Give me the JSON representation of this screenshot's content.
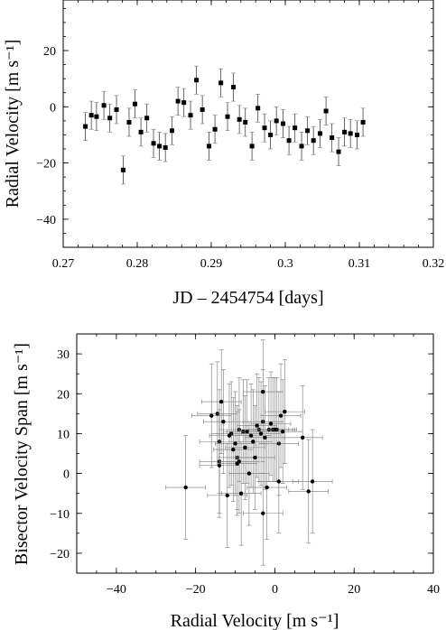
{
  "chart_data": [
    {
      "type": "scatter",
      "title": "",
      "xlabel": "JD – 2454754 [days]",
      "ylabel": "Radial Velocity [m s⁻¹]",
      "xlim": [
        0.27,
        0.32
      ],
      "ylim": [
        -50,
        38
      ],
      "xticks": [
        0.27,
        0.28,
        0.29,
        0.3,
        0.31,
        0.32
      ],
      "xtick_labels": [
        "0.27",
        "0.28",
        "0.29",
        "0.3",
        "0.31",
        "0.32"
      ],
      "yticks": [
        -40,
        -20,
        0,
        20
      ],
      "ytick_labels": [
        "−40",
        "−20",
        "0",
        "20"
      ],
      "marker": "square",
      "points": [
        {
          "x": 0.273,
          "y": -7,
          "yerr": 5
        },
        {
          "x": 0.2738,
          "y": -3,
          "yerr": 5
        },
        {
          "x": 0.2745,
          "y": -3.5,
          "yerr": 5
        },
        {
          "x": 0.2755,
          "y": 0.5,
          "yerr": 5
        },
        {
          "x": 0.2763,
          "y": -4,
          "yerr": 5
        },
        {
          "x": 0.2772,
          "y": -1,
          "yerr": 5
        },
        {
          "x": 0.2781,
          "y": -22.5,
          "yerr": 5
        },
        {
          "x": 0.2789,
          "y": -5.5,
          "yerr": 5
        },
        {
          "x": 0.2797,
          "y": 1,
          "yerr": 5
        },
        {
          "x": 0.2805,
          "y": -9,
          "yerr": 5
        },
        {
          "x": 0.2813,
          "y": -4,
          "yerr": 5
        },
        {
          "x": 0.2822,
          "y": -13,
          "yerr": 5
        },
        {
          "x": 0.283,
          "y": -14,
          "yerr": 5
        },
        {
          "x": 0.2838,
          "y": -14.5,
          "yerr": 5
        },
        {
          "x": 0.2847,
          "y": -8.5,
          "yerr": 5
        },
        {
          "x": 0.2855,
          "y": 2,
          "yerr": 5
        },
        {
          "x": 0.2863,
          "y": 1.5,
          "yerr": 5
        },
        {
          "x": 0.2872,
          "y": -3,
          "yerr": 5
        },
        {
          "x": 0.288,
          "y": 9.5,
          "yerr": 5
        },
        {
          "x": 0.2888,
          "y": -1,
          "yerr": 5
        },
        {
          "x": 0.2897,
          "y": -14,
          "yerr": 5
        },
        {
          "x": 0.2905,
          "y": -8,
          "yerr": 5
        },
        {
          "x": 0.2913,
          "y": 8.5,
          "yerr": 5
        },
        {
          "x": 0.2922,
          "y": -3.5,
          "yerr": 5
        },
        {
          "x": 0.293,
          "y": 7,
          "yerr": 5
        },
        {
          "x": 0.2938,
          "y": -4.5,
          "yerr": 5
        },
        {
          "x": 0.2946,
          "y": -5.5,
          "yerr": 5
        },
        {
          "x": 0.2955,
          "y": -14,
          "yerr": 5
        },
        {
          "x": 0.2963,
          "y": -0.5,
          "yerr": 5
        },
        {
          "x": 0.2972,
          "y": -7.5,
          "yerr": 5
        },
        {
          "x": 0.298,
          "y": -10,
          "yerr": 5
        },
        {
          "x": 0.2988,
          "y": -5,
          "yerr": 5
        },
        {
          "x": 0.2997,
          "y": -6,
          "yerr": 5
        },
        {
          "x": 0.3005,
          "y": -12,
          "yerr": 5
        },
        {
          "x": 0.3013,
          "y": -7.5,
          "yerr": 5
        },
        {
          "x": 0.3022,
          "y": -14,
          "yerr": 5
        },
        {
          "x": 0.303,
          "y": -8.5,
          "yerr": 5
        },
        {
          "x": 0.3038,
          "y": -12,
          "yerr": 5
        },
        {
          "x": 0.3047,
          "y": -9.5,
          "yerr": 5
        },
        {
          "x": 0.3055,
          "y": -1.5,
          "yerr": 5
        },
        {
          "x": 0.3063,
          "y": -11,
          "yerr": 5
        },
        {
          "x": 0.3072,
          "y": -16,
          "yerr": 5
        },
        {
          "x": 0.308,
          "y": -9,
          "yerr": 5
        },
        {
          "x": 0.3088,
          "y": -9.5,
          "yerr": 5
        },
        {
          "x": 0.3097,
          "y": -10,
          "yerr": 5
        },
        {
          "x": 0.3105,
          "y": -5.5,
          "yerr": 5
        }
      ],
      "grid": false
    },
    {
      "type": "scatter",
      "title": "",
      "xlabel": "Radial Velocity [m s⁻¹]",
      "ylabel": "Bisector Velocity Span [m s⁻¹]",
      "xlim": [
        -50,
        40
      ],
      "ylim": [
        -25,
        35
      ],
      "xticks": [
        -40,
        -20,
        0,
        20,
        40
      ],
      "xtick_labels": [
        "−40",
        "−20",
        "0",
        "20",
        "40"
      ],
      "yticks": [
        -20,
        -10,
        0,
        10,
        20,
        30
      ],
      "ytick_labels": [
        "−20",
        "−10",
        "0",
        "10",
        "20",
        "30"
      ],
      "marker": "circle",
      "points": [
        {
          "x": -22.5,
          "y": -3.5,
          "xerr": 5,
          "yerr": 13
        },
        {
          "x": -16,
          "y": 14.5,
          "xerr": 5,
          "yerr": 13
        },
        {
          "x": -14.5,
          "y": 15,
          "xerr": 5,
          "yerr": 13
        },
        {
          "x": -14,
          "y": 8,
          "xerr": 5,
          "yerr": 13
        },
        {
          "x": -14,
          "y": 3,
          "xerr": 5,
          "yerr": 13
        },
        {
          "x": -14,
          "y": 2,
          "xerr": 5,
          "yerr": 13
        },
        {
          "x": -13.5,
          "y": 18,
          "xerr": 5,
          "yerr": 13
        },
        {
          "x": -13,
          "y": 13,
          "xerr": 5,
          "yerr": 13
        },
        {
          "x": -12,
          "y": -5.5,
          "xerr": 5,
          "yerr": 13
        },
        {
          "x": -11.5,
          "y": 9.5,
          "xerr": 5,
          "yerr": 13
        },
        {
          "x": -11,
          "y": 10,
          "xerr": 5,
          "yerr": 13
        },
        {
          "x": -10.5,
          "y": 6,
          "xerr": 5,
          "yerr": 13
        },
        {
          "x": -10,
          "y": 7.5,
          "xerr": 5,
          "yerr": 13
        },
        {
          "x": -9.5,
          "y": 4,
          "xerr": 5,
          "yerr": 13
        },
        {
          "x": -9.5,
          "y": 2.5,
          "xerr": 5,
          "yerr": 13
        },
        {
          "x": -9,
          "y": 11,
          "xerr": 5,
          "yerr": 13
        },
        {
          "x": -9,
          "y": 3,
          "xerr": 5,
          "yerr": 13
        },
        {
          "x": -8.5,
          "y": -5,
          "xerr": 5,
          "yerr": 13
        },
        {
          "x": -8,
          "y": 10.5,
          "xerr": 5,
          "yerr": 13
        },
        {
          "x": -7.5,
          "y": 6.5,
          "xerr": 5,
          "yerr": 13
        },
        {
          "x": -7,
          "y": 10.5,
          "xerr": 5,
          "yerr": 13
        },
        {
          "x": -6,
          "y": 9.5,
          "xerr": 5,
          "yerr": 13
        },
        {
          "x": -5.5,
          "y": 8,
          "xerr": 5,
          "yerr": 13
        },
        {
          "x": -5,
          "y": 4,
          "xerr": 5,
          "yerr": 13
        },
        {
          "x": -4.5,
          "y": 12,
          "xerr": 5,
          "yerr": 13
        },
        {
          "x": -4,
          "y": 11,
          "xerr": 5,
          "yerr": 13
        },
        {
          "x": -3.5,
          "y": 10,
          "xerr": 5,
          "yerr": 13
        },
        {
          "x": -3,
          "y": 13,
          "xerr": 5,
          "yerr": 13
        },
        {
          "x": -3,
          "y": 20.5,
          "xerr": 5,
          "yerr": 13
        },
        {
          "x": -3,
          "y": -10,
          "xerr": 5,
          "yerr": 13
        },
        {
          "x": -2.5,
          "y": 9,
          "xerr": 5,
          "yerr": 13
        },
        {
          "x": -2,
          "y": -3.5,
          "xerr": 5,
          "yerr": 13
        },
        {
          "x": -1.5,
          "y": 11,
          "xerr": 5,
          "yerr": 13
        },
        {
          "x": -1,
          "y": 12.5,
          "xerr": 5,
          "yerr": 13
        },
        {
          "x": -0.5,
          "y": 11,
          "xerr": 5,
          "yerr": 13
        },
        {
          "x": 0,
          "y": 11,
          "xerr": 5,
          "yerr": 13
        },
        {
          "x": 0.5,
          "y": 11,
          "xerr": 5,
          "yerr": 13
        },
        {
          "x": 1,
          "y": 7.5,
          "xerr": 5,
          "yerr": 13
        },
        {
          "x": 1,
          "y": -2,
          "xerr": 5,
          "yerr": 13
        },
        {
          "x": 1.5,
          "y": 14.5,
          "xerr": 5,
          "yerr": 13
        },
        {
          "x": 2,
          "y": 10.5,
          "xerr": 5,
          "yerr": 13
        },
        {
          "x": 2.5,
          "y": 15.5,
          "xerr": 5,
          "yerr": 13
        },
        {
          "x": 7,
          "y": 9,
          "xerr": 5,
          "yerr": 13
        },
        {
          "x": 8.5,
          "y": -4.5,
          "xerr": 5,
          "yerr": 13
        },
        {
          "x": 9.5,
          "y": -2,
          "xerr": 5,
          "yerr": 13
        },
        {
          "x": -6.5,
          "y": 0,
          "xerr": 5,
          "yerr": 13
        }
      ],
      "grid": false
    }
  ]
}
